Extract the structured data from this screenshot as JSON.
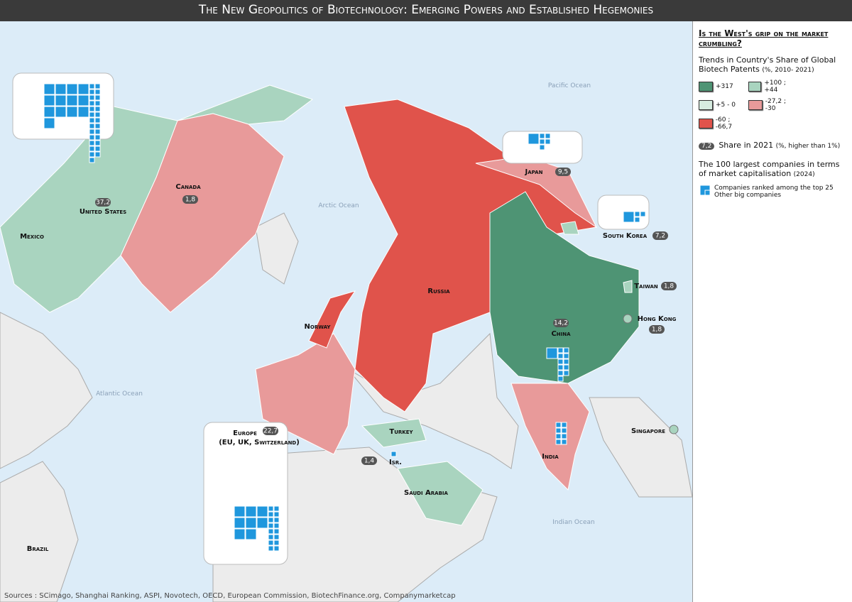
{
  "title": "The New Geopolitics of Biotechnology: Emerging Powers and Established Hegemonies",
  "sources": "Sources : SCimago, Shanghai Ranking, ASPI, Novotech, OECD, European Commission, BiotechFinance.org, Companymarketcap",
  "oceans": [
    "Pacific Ocean",
    "Arctic Ocean",
    "Atlantic Ocean",
    "Indian Ocean"
  ],
  "countries": [
    {
      "name": "United States",
      "share": "37,2",
      "trend": "+100 ; +44",
      "top25": 13,
      "other": 27
    },
    {
      "name": "Canada",
      "share": "1,8",
      "trend": "-27,2 ; -30"
    },
    {
      "name": "Mexico"
    },
    {
      "name": "Norway",
      "trend": "-60 ; -66,7"
    },
    {
      "name": "Russia",
      "trend": "-60 ; -66,7"
    },
    {
      "name": "Japan",
      "share": "9,5",
      "trend": "-27,2 ; -30",
      "top25": 1,
      "other": 5
    },
    {
      "name": "South Korea",
      "share": "7,2",
      "trend": "+100 ; +44",
      "top25": 1,
      "other": 3
    },
    {
      "name": "Taiwan",
      "share": "1,8",
      "trend": "+100 ; +44"
    },
    {
      "name": "Hong Kong",
      "share": "1,8",
      "trend": "+100 ; +44"
    },
    {
      "name": "China",
      "share": "14,2",
      "trend": "+317",
      "top25": 1,
      "other": 11
    },
    {
      "name": "Singapore",
      "trend": "+100 ; +44"
    },
    {
      "name": "Turkey",
      "trend": "+100 ; +44"
    },
    {
      "name": "Isr.",
      "share": "1,4",
      "other": 1
    },
    {
      "name": "Saudi Arabia",
      "trend": "+100 ; +44"
    },
    {
      "name": "India",
      "trend": "-27,2 ; -30",
      "other": 8
    },
    {
      "name": "Europe (EU, UK, Switzerland)",
      "share": "22,7",
      "trend": "-27,2 ; -30",
      "top25": 8,
      "other": 16
    },
    {
      "name": "Brazil"
    }
  ],
  "legend": {
    "question": "Is the West's grip on the market crumbling?",
    "trend_title": "Trends in Country's Share of Global Biotech Patents",
    "trend_note": "(%, 2010- 2021)",
    "trend_classes": [
      {
        "label": "+317",
        "color": "#4e9474"
      },
      {
        "label": "+100 ; +44",
        "color": "#a9d4bf"
      },
      {
        "label": "+5 - 0",
        "color": "#d6ece0"
      },
      {
        "label": "-27,2 ; -30",
        "color": "#e89a9a"
      },
      {
        "label": "-60 ; -66,7",
        "color": "#e0534b"
      }
    ],
    "share_example": "7,2",
    "share_label": "Share in 2021",
    "share_note": "(%, higher than 1%)",
    "companies_title": "The 100 largest companies in terms of market capitalisation",
    "companies_note": "(2024)",
    "top25_label": "Companies ranked among the top 25",
    "other_label": "Other big companies",
    "square_color": "#1f97dd"
  }
}
